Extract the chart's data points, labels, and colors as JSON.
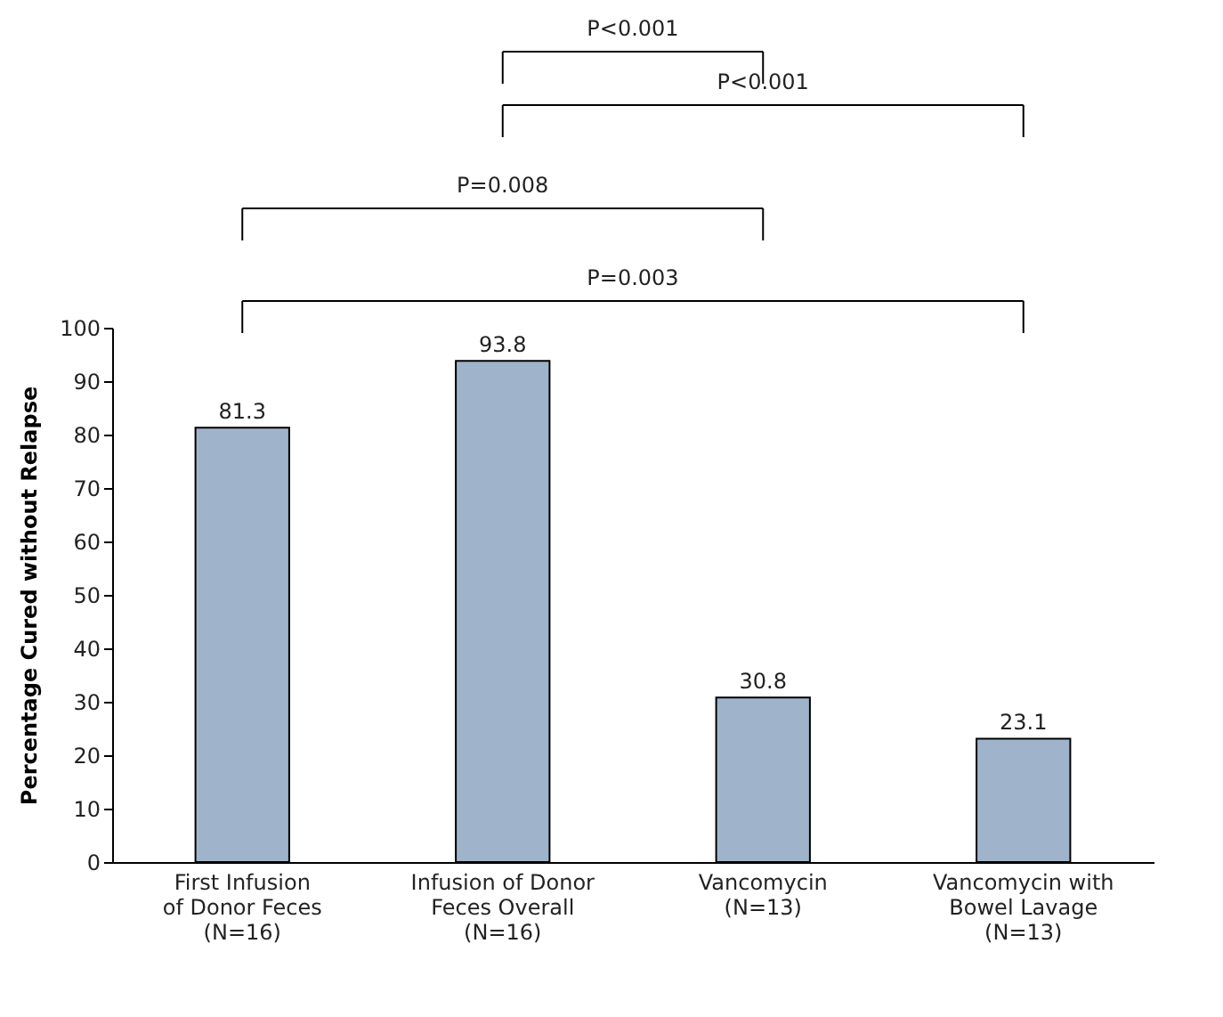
{
  "chart_data": {
    "type": "bar",
    "categories": [
      "First Infusion\nof Donor Feces\n(N=16)",
      "Infusion of Donor\nFeces Overall\n(N=16)",
      "Vancomycin\n(N=13)",
      "Vancomycin with\nBowel Lavage\n(N=13)"
    ],
    "values": [
      81.3,
      93.8,
      30.8,
      23.1
    ],
    "color": "#9fb4cb",
    "ylabel": "Percentage Cured without Relapse",
    "ylim": [
      0,
      100
    ],
    "yticks": [
      0,
      10,
      20,
      30,
      40,
      50,
      60,
      70,
      80,
      90,
      100
    ],
    "grid": false,
    "data_labels": true,
    "annotations": [
      "P<0.001",
      "P<0.001",
      "P=0.008",
      "P=0.003"
    ]
  }
}
